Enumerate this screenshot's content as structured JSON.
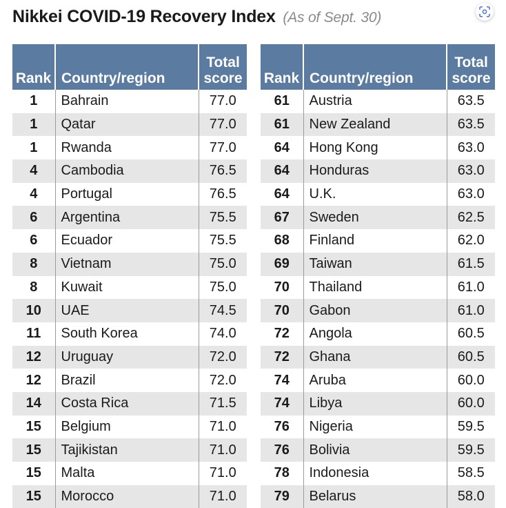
{
  "header": {
    "title": "Nikkei COVID-19 Recovery Index",
    "subtitle": "(As of Sept. 30)"
  },
  "icons": {
    "lens": "image-search-icon"
  },
  "table_headers": {
    "rank": "Rank",
    "country": "Country/region",
    "score_line1": "Total",
    "score_line2": "score"
  },
  "left_rows": [
    {
      "rank": "1",
      "country": "Bahrain",
      "score": "77.0"
    },
    {
      "rank": "1",
      "country": "Qatar",
      "score": "77.0"
    },
    {
      "rank": "1",
      "country": "Rwanda",
      "score": "77.0"
    },
    {
      "rank": "4",
      "country": "Cambodia",
      "score": "76.5"
    },
    {
      "rank": "4",
      "country": "Portugal",
      "score": "76.5"
    },
    {
      "rank": "6",
      "country": "Argentina",
      "score": "75.5"
    },
    {
      "rank": "6",
      "country": "Ecuador",
      "score": "75.5"
    },
    {
      "rank": "8",
      "country": "Vietnam",
      "score": "75.0"
    },
    {
      "rank": "8",
      "country": "Kuwait",
      "score": "75.0"
    },
    {
      "rank": "10",
      "country": "UAE",
      "score": "74.5"
    },
    {
      "rank": "11",
      "country": "South Korea",
      "score": "74.0"
    },
    {
      "rank": "12",
      "country": "Uruguay",
      "score": "72.0"
    },
    {
      "rank": "12",
      "country": "Brazil",
      "score": "72.0"
    },
    {
      "rank": "14",
      "country": "Costa Rica",
      "score": "71.5"
    },
    {
      "rank": "15",
      "country": "Belgium",
      "score": "71.0"
    },
    {
      "rank": "15",
      "country": "Tajikistan",
      "score": "71.0"
    },
    {
      "rank": "15",
      "country": "Malta",
      "score": "71.0"
    },
    {
      "rank": "15",
      "country": "Morocco",
      "score": "71.0"
    }
  ],
  "right_rows": [
    {
      "rank": "61",
      "country": "Austria",
      "score": "63.5"
    },
    {
      "rank": "61",
      "country": "New Zealand",
      "score": "63.5"
    },
    {
      "rank": "64",
      "country": "Hong Kong",
      "score": "63.0"
    },
    {
      "rank": "64",
      "country": "Honduras",
      "score": "63.0"
    },
    {
      "rank": "64",
      "country": "U.K.",
      "score": "63.0"
    },
    {
      "rank": "67",
      "country": "Sweden",
      "score": "62.5"
    },
    {
      "rank": "68",
      "country": "Finland",
      "score": "62.0"
    },
    {
      "rank": "69",
      "country": "Taiwan",
      "score": "61.5"
    },
    {
      "rank": "70",
      "country": "Thailand",
      "score": "61.0"
    },
    {
      "rank": "70",
      "country": "Gabon",
      "score": "61.0"
    },
    {
      "rank": "72",
      "country": "Angola",
      "score": "60.5"
    },
    {
      "rank": "72",
      "country": "Ghana",
      "score": "60.5"
    },
    {
      "rank": "74",
      "country": "Aruba",
      "score": "60.0"
    },
    {
      "rank": "74",
      "country": "Libya",
      "score": "60.0"
    },
    {
      "rank": "76",
      "country": "Nigeria",
      "score": "59.5"
    },
    {
      "rank": "76",
      "country": "Bolivia",
      "score": "59.5"
    },
    {
      "rank": "78",
      "country": "Indonesia",
      "score": "58.5"
    },
    {
      "rank": "79",
      "country": "Belarus",
      "score": "58.0"
    }
  ],
  "colors": {
    "header_bg": "#5b7ba1",
    "stripe": "#e6e6e6",
    "title": "#1a1a1a",
    "subtitle": "#8a8a8a"
  }
}
